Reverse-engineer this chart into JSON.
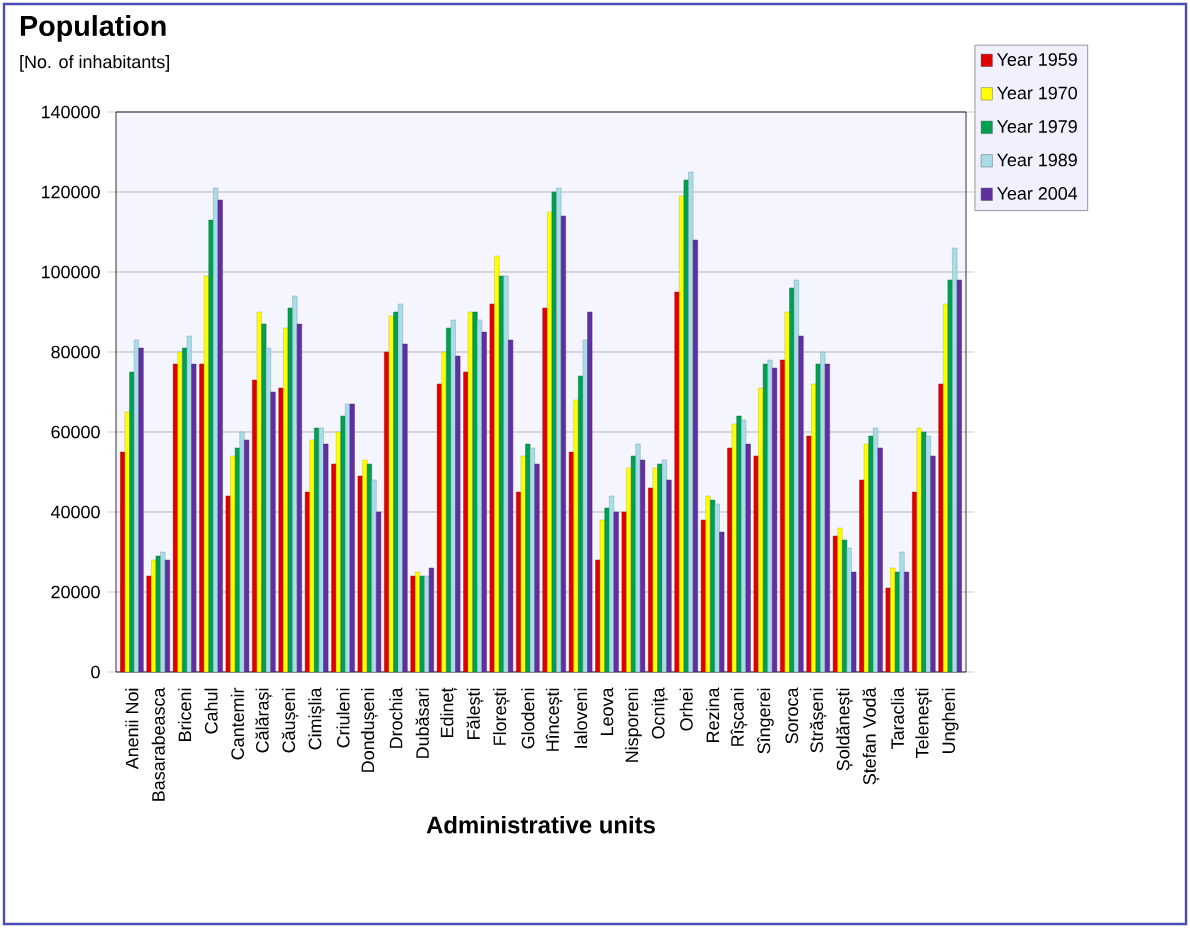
{
  "chart_data": {
    "type": "bar",
    "title": "Population",
    "subtitle": "[No. of inhabitants]",
    "xlabel": "Administrative units",
    "categories": [
      "Anenii Noi",
      "Basarabeasca",
      "Briceni",
      "Cahul",
      "Cantemir",
      "Călărași",
      "Căușeni",
      "Cimișlia",
      "Criuleni",
      "Dondușeni",
      "Drochia",
      "Dubăsari",
      "Edineț",
      "Fălești",
      "Florești",
      "Glodeni",
      "Hîncești",
      "Ialoveni",
      "Leova",
      "Nisporeni",
      "Ocnița",
      "Orhei",
      "Rezina",
      "Rîșcani",
      "Sîngerei",
      "Soroca",
      "Strășeni",
      "Șoldănești",
      "Ștefan Vodă",
      "Taraclia",
      "Telenești",
      "Ungheni"
    ],
    "series": [
      {
        "name": "Year 1959",
        "color": "#e00000",
        "values": [
          55000,
          24000,
          77000,
          77000,
          44000,
          73000,
          71000,
          45000,
          52000,
          49000,
          80000,
          24000,
          72000,
          75000,
          92000,
          45000,
          91000,
          55000,
          28000,
          40000,
          46000,
          95000,
          38000,
          56000,
          54000,
          78000,
          59000,
          34000,
          48000,
          21000,
          45000,
          72000
        ]
      },
      {
        "name": "Year 1970",
        "color": "#ffff00",
        "values": [
          65000,
          28000,
          80000,
          99000,
          54000,
          90000,
          86000,
          58000,
          60000,
          53000,
          89000,
          25000,
          80000,
          90000,
          104000,
          54000,
          115000,
          68000,
          38000,
          51000,
          51000,
          119000,
          44000,
          62000,
          71000,
          90000,
          72000,
          36000,
          57000,
          26000,
          61000,
          92000
        ]
      },
      {
        "name": "Year 1979",
        "color": "#00a050",
        "values": [
          75000,
          29000,
          81000,
          113000,
          56000,
          87000,
          91000,
          61000,
          64000,
          52000,
          90000,
          24000,
          86000,
          90000,
          99000,
          57000,
          120000,
          74000,
          41000,
          54000,
          52000,
          123000,
          43000,
          64000,
          77000,
          96000,
          77000,
          33000,
          59000,
          25000,
          60000,
          98000
        ]
      },
      {
        "name": "Year 1989",
        "color": "#a8dce8",
        "values": [
          83000,
          30000,
          84000,
          121000,
          60000,
          81000,
          94000,
          61000,
          67000,
          48000,
          92000,
          24000,
          88000,
          88000,
          99000,
          56000,
          121000,
          83000,
          44000,
          57000,
          53000,
          125000,
          42000,
          63000,
          78000,
          98000,
          80000,
          31000,
          61000,
          30000,
          59000,
          106000
        ]
      },
      {
        "name": "Year 2004",
        "color": "#6030a0",
        "values": [
          81000,
          28000,
          77000,
          118000,
          58000,
          70000,
          87000,
          57000,
          67000,
          40000,
          82000,
          26000,
          79000,
          85000,
          83000,
          52000,
          114000,
          90000,
          40000,
          53000,
          48000,
          108000,
          35000,
          57000,
          76000,
          84000,
          77000,
          25000,
          56000,
          25000,
          54000,
          98000
        ]
      }
    ],
    "ylim": [
      0,
      140000
    ],
    "yticks": [
      0,
      20000,
      40000,
      60000,
      80000,
      100000,
      120000,
      140000
    ],
    "grid": "y",
    "legend": "top right"
  }
}
